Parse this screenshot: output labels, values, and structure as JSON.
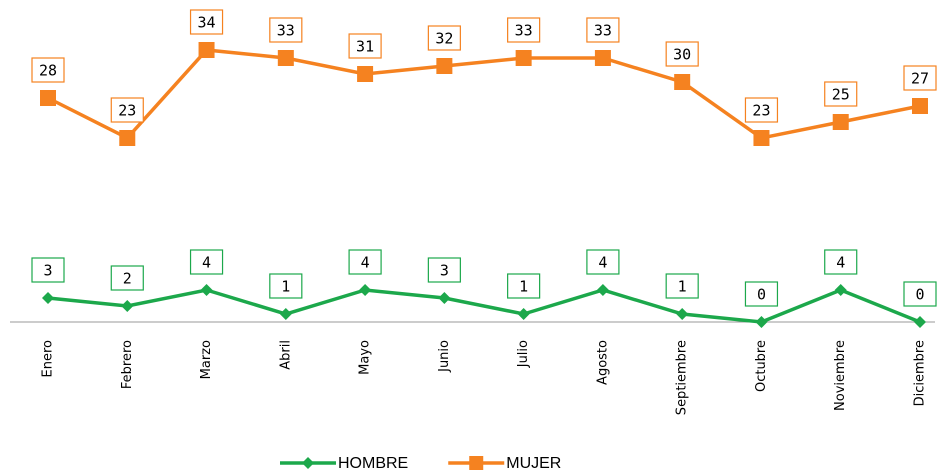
{
  "chart_data": {
    "type": "line",
    "categories": [
      "Enero",
      "Febrero",
      "Marzo",
      "Abril",
      "Mayo",
      "Junio",
      "Julio",
      "Agosto",
      "Septiembre",
      "Octubre",
      "Noviembre",
      "Diciembre"
    ],
    "series": [
      {
        "name": "HOMBRE",
        "color": "#1ca84b",
        "marker": "diamond",
        "values": [
          3,
          2,
          4,
          1,
          4,
          3,
          1,
          4,
          1,
          0,
          4,
          0
        ]
      },
      {
        "name": "MUJER",
        "color": "#f58220",
        "marker": "square",
        "values": [
          28,
          23,
          34,
          33,
          31,
          32,
          33,
          33,
          30,
          23,
          25,
          27
        ]
      }
    ],
    "ylim": [
      0,
      40
    ],
    "legend": "bottom"
  }
}
